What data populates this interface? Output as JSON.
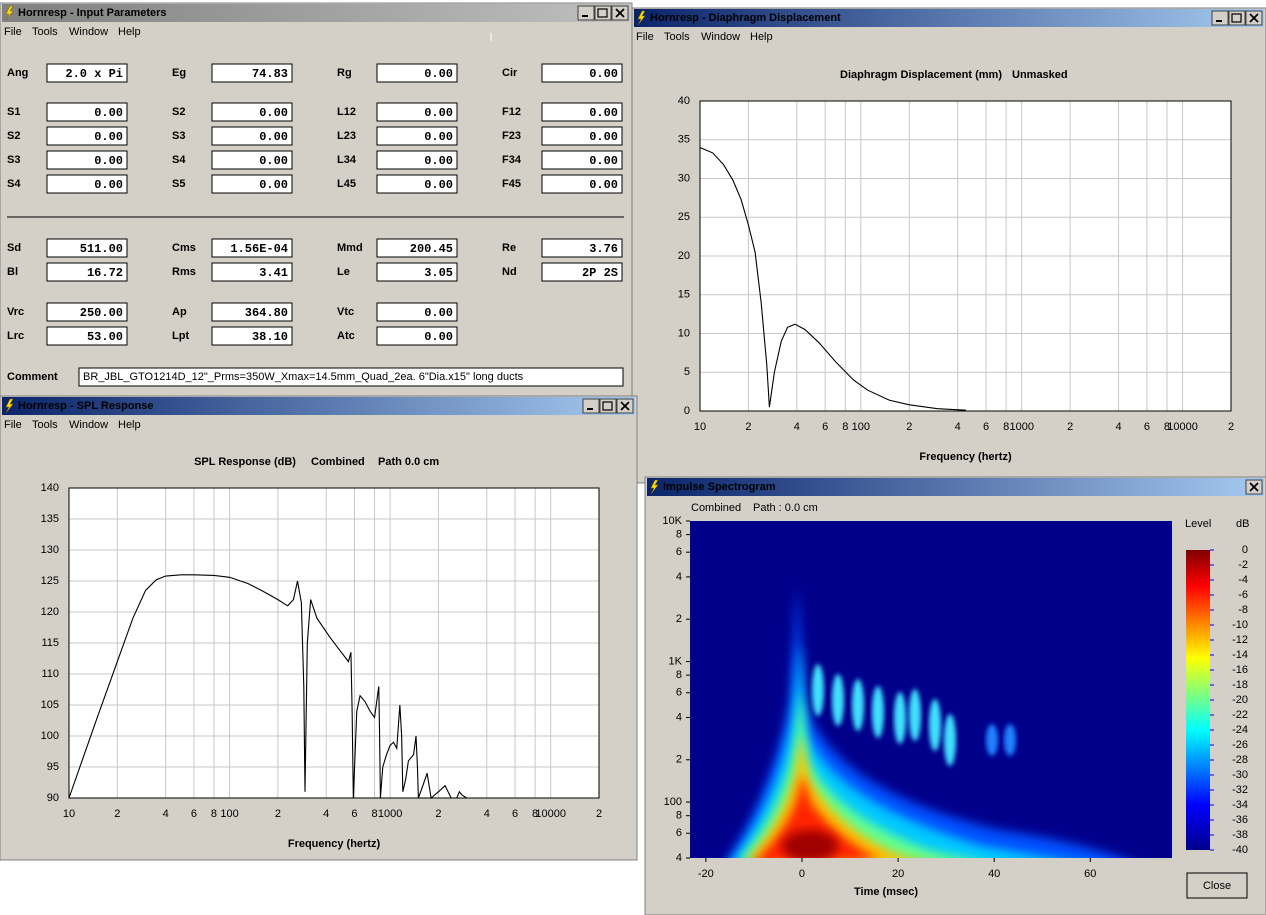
{
  "input_window": {
    "title": "Hornresp - Input Parameters",
    "menu": [
      "File",
      "Tools",
      "Window",
      "Help"
    ],
    "rows": [
      [
        {
          "label": "Ang",
          "value": "2.0 x Pi"
        },
        {
          "label": "Eg",
          "value": "74.83"
        },
        {
          "label": "Rg",
          "value": "0.00"
        },
        {
          "label": "Cir",
          "value": "0.00",
          "dimmed": true
        }
      ],
      [
        {
          "label": "S1",
          "value": "0.00"
        },
        {
          "label": "S2",
          "value": "0.00"
        },
        {
          "label": "L12",
          "value": "0.00"
        },
        {
          "label": "F12",
          "value": "0.00",
          "dimmed": true
        }
      ],
      [
        {
          "label": "S2",
          "value": "0.00"
        },
        {
          "label": "S3",
          "value": "0.00"
        },
        {
          "label": "L23",
          "value": "0.00"
        },
        {
          "label": "F23",
          "value": "0.00",
          "dimmed": true
        }
      ],
      [
        {
          "label": "S3",
          "value": "0.00"
        },
        {
          "label": "S4",
          "value": "0.00"
        },
        {
          "label": "L34",
          "value": "0.00"
        },
        {
          "label": "F34",
          "value": "0.00",
          "dimmed": true
        }
      ],
      [
        {
          "label": "S4",
          "value": "0.00"
        },
        {
          "label": "S5",
          "value": "0.00"
        },
        {
          "label": "L45",
          "value": "0.00"
        },
        {
          "label": "F45",
          "value": "0.00",
          "dimmed": true
        }
      ],
      [
        {
          "label": "Sd",
          "value": "511.00"
        },
        {
          "label": "Cms",
          "value": "1.56E-04"
        },
        {
          "label": "Mmd",
          "value": "200.45"
        },
        {
          "label": "Re",
          "value": "3.76"
        }
      ],
      [
        {
          "label": "Bl",
          "value": "16.72"
        },
        {
          "label": "Rms",
          "value": "3.41"
        },
        {
          "label": "Le",
          "value": "3.05"
        },
        {
          "label": "Nd",
          "value": "2P 2S",
          "dimmed": true
        }
      ],
      [
        {
          "label": "Vrc",
          "value": "250.00"
        },
        {
          "label": "Ap",
          "value": "364.80"
        },
        {
          "label": "Vtc",
          "value": "0.00"
        }
      ],
      [
        {
          "label": "Lrc",
          "value": "53.00"
        },
        {
          "label": "Lpt",
          "value": "38.10"
        },
        {
          "label": "Atc",
          "value": "0.00"
        }
      ]
    ],
    "comment_label": "Comment",
    "comment": "BR_JBL_GTO1214D_12\"_Prms=350W_Xmax=14.5mm_Quad_2ea. 6\"Dia.x15\" long ducts"
  },
  "displacement_window": {
    "title": "Hornresp - Diaphragm Displacement",
    "menu": [
      "File",
      "Tools",
      "Window",
      "Help"
    ]
  },
  "spl_window": {
    "title": "Hornresp - SPL Response",
    "menu": [
      "File",
      "Tools",
      "Window",
      "Help"
    ]
  },
  "spectrogram_window": {
    "title": "Impulse Spectrogram",
    "button": "Close"
  },
  "chart_data": [
    {
      "type": "line",
      "title": "Diaphragm Displacement (mm)",
      "subtitle": "Unmasked",
      "x_label": "Frequency (hertz)",
      "x": [
        10,
        12,
        14,
        16,
        18,
        20,
        22,
        24,
        26,
        27,
        29,
        32,
        35,
        39,
        45,
        55,
        70,
        90,
        110,
        150,
        200,
        300,
        450
      ],
      "values": [
        34,
        33.3,
        31.8,
        29.8,
        27.3,
        24,
        20.5,
        14,
        6,
        0.5,
        5,
        9,
        10.8,
        11.2,
        10.5,
        8.8,
        6.3,
        4,
        2.7,
        1.4,
        0.8,
        0.3,
        0.1
      ],
      "color": "#000000",
      "xscale": "log",
      "xlim": [
        10,
        20000
      ],
      "xticks": [
        10,
        {
          "value": 20,
          "label": "2"
        },
        {
          "value": 40,
          "label": "4"
        },
        {
          "value": 60,
          "label": "6"
        },
        {
          "value": 80,
          "label": "8"
        },
        100,
        {
          "value": 200,
          "label": "2"
        },
        {
          "value": 400,
          "label": "4"
        },
        {
          "value": 600,
          "label": "6"
        },
        {
          "value": 800,
          "label": "8"
        },
        1000,
        {
          "value": 2000,
          "label": "2"
        },
        {
          "value": 4000,
          "label": "4"
        },
        {
          "value": 6000,
          "label": "6"
        },
        {
          "value": 8000,
          "label": "8"
        },
        10000,
        {
          "value": 20000,
          "label": "2"
        }
      ],
      "ylim": [
        0,
        40
      ],
      "yticks": [
        0,
        5,
        10,
        15,
        20,
        25,
        30,
        35,
        40
      ],
      "grid": true
    },
    {
      "type": "line",
      "title": "SPL Response (dB)",
      "subtitle": "Combined",
      "annotation": "Path 0.0 cm",
      "x_label": "Frequency (hertz)",
      "x": [
        10,
        15,
        20,
        25,
        30,
        35,
        40,
        50,
        60,
        80,
        100,
        130,
        160,
        200,
        230,
        250,
        265,
        280,
        290,
        295,
        305,
        320,
        350,
        420,
        480,
        550,
        570,
        580,
        590,
        620,
        650,
        700,
        750,
        800,
        850,
        860,
        870,
        900,
        950,
        1000,
        1050,
        1100,
        1150,
        1180,
        1200,
        1250,
        1300,
        1400,
        1450,
        1480,
        1500,
        1600,
        1700,
        1800,
        2000,
        2200,
        2400,
        2600,
        2700,
        2800,
        3000,
        3200,
        20000
      ],
      "values": [
        90,
        103,
        112,
        119,
        123.5,
        125.2,
        125.8,
        126,
        126,
        125.9,
        125.6,
        124.6,
        123.4,
        122,
        121,
        122,
        125,
        121.5,
        108,
        91,
        115,
        122,
        119,
        116,
        114,
        112,
        113.5,
        104,
        90,
        104,
        106.5,
        105.5,
        104,
        103,
        108,
        100,
        90,
        95,
        97,
        98.5,
        99,
        98,
        105,
        100,
        91,
        93,
        96,
        97,
        100,
        95,
        90,
        92,
        94,
        90,
        91,
        92,
        90,
        90,
        91,
        90.5,
        90,
        90,
        90
      ],
      "color": "#000000",
      "xscale": "log",
      "xlim": [
        10,
        20000
      ],
      "xticks": [
        10,
        {
          "value": 20,
          "label": "2"
        },
        {
          "value": 40,
          "label": "4"
        },
        {
          "value": 60,
          "label": "6"
        },
        {
          "value": 80,
          "label": "8"
        },
        100,
        {
          "value": 200,
          "label": "2"
        },
        {
          "value": 400,
          "label": "4"
        },
        {
          "value": 600,
          "label": "6"
        },
        {
          "value": 800,
          "label": "8"
        },
        1000,
        {
          "value": 2000,
          "label": "2"
        },
        {
          "value": 4000,
          "label": "4"
        },
        {
          "value": 6000,
          "label": "6"
        },
        {
          "value": 8000,
          "label": "8"
        },
        10000,
        {
          "value": 20000,
          "label": "2"
        }
      ],
      "ylim": [
        90,
        140
      ],
      "yticks": [
        90,
        95,
        100,
        105,
        110,
        115,
        120,
        125,
        130,
        135,
        140
      ],
      "grid": true
    },
    {
      "type": "spectrogram",
      "subtitle": "Combined",
      "annotation": "Path : 0.0 cm",
      "x_label": "Time (msec)",
      "xlim": [
        -23.3,
        77
      ],
      "xticks": [
        -20,
        0,
        20,
        40,
        60
      ],
      "yscale": "log",
      "ylim": [
        40,
        10000
      ],
      "yticks": [
        {
          "value": 10000,
          "label": "10K"
        },
        {
          "value": 8000,
          "label": "8"
        },
        {
          "value": 6000,
          "label": "6"
        },
        {
          "value": 4000,
          "label": "4"
        },
        {
          "value": 2000,
          "label": "2"
        },
        {
          "value": 1000,
          "label": "1K"
        },
        {
          "value": 800,
          "label": "8"
        },
        {
          "value": 600,
          "label": "6"
        },
        {
          "value": 400,
          "label": "4"
        },
        {
          "value": 200,
          "label": "2"
        },
        100,
        {
          "value": 80,
          "label": "8"
        },
        {
          "value": 60,
          "label": "6"
        },
        {
          "value": 40,
          "label": "4"
        }
      ],
      "colorbar": {
        "label": "Level",
        "unit": "dB",
        "lim": [
          0,
          -40
        ],
        "ticks": [
          0,
          -2,
          -4,
          -6,
          -8,
          -10,
          -12,
          -14,
          -16,
          -18,
          -20,
          -22,
          -24,
          -26,
          -28,
          -30,
          -32,
          -34,
          -36,
          -38,
          -40
        ]
      }
    }
  ]
}
